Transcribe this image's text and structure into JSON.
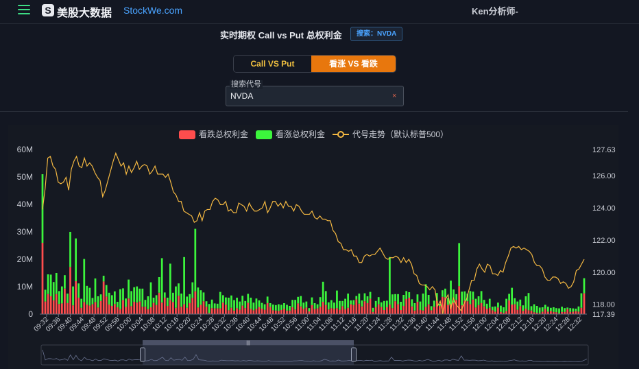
{
  "header": {
    "menu_icon": "hamburger-icon",
    "logo_icon": "s-logo-icon",
    "logo_mark": "S",
    "brand_cn": "美股大数据",
    "brand_en": "StockWe.com",
    "user": "Ken分析师-"
  },
  "title_row": {
    "title": "实时期权 Call vs Put 总权利金",
    "search_badge": "搜索：NVDA"
  },
  "toggle": {
    "option_1": "Call VS Put",
    "option_2": "看涨 VS 看跌",
    "active": "看涨 VS 看跌"
  },
  "search": {
    "label": "搜索代号",
    "value": "NVDA",
    "clear_icon": "close-icon",
    "clear_glyph": "×"
  },
  "colors": {
    "put": "#ff4d4d",
    "call": "#3cf53c",
    "price": "#f5b942",
    "accent": "#e8770d",
    "link": "#4aa3ff"
  },
  "chart_data": {
    "type": "bar",
    "stacked": true,
    "legend": {
      "placement": "top-center",
      "put_label": "看跌总权利金",
      "call_label": "看涨总权利金",
      "price_label": "代号走势（默认标普500）"
    },
    "y_left": {
      "ticks": [
        "0",
        "10M",
        "20M",
        "30M",
        "40M",
        "50M",
        "60M"
      ],
      "range": [
        0,
        60
      ]
    },
    "y_right": {
      "ticks": [
        "117.39",
        "118.00",
        "120.00",
        "122.00",
        "124.00",
        "126.00",
        "127.63"
      ],
      "range": [
        117.39,
        127.63
      ]
    },
    "x_ticks": [
      "09:32",
      "09:36",
      "09:40",
      "09:44",
      "09:48",
      "09:52",
      "09:56",
      "10:00",
      "10:04",
      "10:08",
      "10:12",
      "10:16",
      "10:20",
      "10:24",
      "10:28",
      "10:32",
      "10:36",
      "10:40",
      "10:44",
      "10:48",
      "10:52",
      "10:56",
      "11:00",
      "11:04",
      "11:08",
      "11:12",
      "11:16",
      "11:20",
      "11:24",
      "11:28",
      "11:32",
      "11:36",
      "11:40",
      "11:44",
      "11:48",
      "11:52",
      "11:56",
      "12:00",
      "12:04",
      "12:08",
      "12:12",
      "12:16",
      "12:20",
      "12:24",
      "12:28",
      "12:32"
    ],
    "put_values": [
      26,
      4.6,
      7.3,
      6.5,
      5,
      7.3,
      3.7,
      3.9,
      9.3,
      4,
      17.2,
      3.2,
      12,
      6,
      2.3,
      4.4,
      3.5,
      3.1,
      3.6,
      4.4,
      2.4,
      4.8,
      11.9,
      6.4,
      3.5,
      3,
      3.7,
      2.5,
      1.8,
      5.1,
      2.6,
      5.7,
      2.9,
      4.5,
      4.2,
      4.6,
      2.7,
      2.7,
      1.8,
      2.5,
      4.1,
      3.3,
      7.8,
      4.2,
      6,
      3,
      5.1,
      4.4,
      2.3,
      6.7,
      2.7,
      3.6,
      2.3,
      4,
      5.9,
      8.3,
      2.4,
      3.4,
      4.7,
      2.7,
      0.4,
      2.2,
      2.1,
      2.1,
      2.1,
      4.2,
      3.4,
      1.4,
      2.3,
      1.3,
      2.2,
      1.6,
      3.1,
      2.2,
      4.1,
      1.9,
      1.4,
      2,
      2.6,
      2,
      1.6,
      4,
      2.6,
      1.4,
      1.3,
      1.2,
      1.5,
      2,
      1.3,
      1.3,
      2.5,
      1.7,
      3.9,
      2.8,
      2,
      2.4,
      1,
      3.3,
      1.9,
      2.1,
      2.7,
      4.5,
      3.3,
      1.7,
      2.2,
      2,
      2.2,
      1.6,
      2.9,
      1.8,
      2.3,
      3.6,
      3.3,
      5.4,
      3.8,
      2.8,
      4.7,
      4,
      5.6,
      0.8,
      2.5,
      3.6,
      2.6,
      1.5,
      2.5,
      3.5,
      2.2,
      4.7,
      3.6,
      1.5,
      3,
      5.5,
      6,
      2.8,
      1.3,
      4.5,
      1.5,
      1.3,
      2.6,
      3.6,
      1.4,
      2.7,
      4.8,
      3,
      6.3,
      6.1,
      3.4,
      3.5,
      4.2,
      5.2,
      10.2,
      3.2,
      4.9,
      4.7,
      3.6,
      5.3,
      2.4,
      3.3,
      4,
      2.8,
      2,
      2.3,
      1.4,
      0.9,
      2.4,
      0.8,
      0.5,
      1.1,
      5,
      3.5,
      3.6,
      1.6,
      2.9,
      1.2,
      2,
      1.4,
      1.3,
      0.7,
      0.5,
      0.4,
      0.9,
      1.9,
      0.9,
      1.2,
      0.8,
      0.7,
      0.3,
      0.8,
      0.8,
      1.8,
      0.8,
      0.9,
      1.1,
      0.9,
      2.3,
      7.6
    ],
    "call_values": [
      25,
      4.3,
      7.2,
      7.9,
      6.7,
      7.7,
      4.7,
      6.2,
      4.9,
      3.5,
      12.8,
      6.9,
      15.6,
      5.2,
      3.3,
      15.7,
      6.8,
      6.5,
      2.3,
      8.6,
      4.1,
      2.4,
      2.1,
      4.2,
      4.3,
      3.9,
      4.6,
      2,
      7.3,
      4.3,
      3.1,
      6.9,
      5.5,
      5.3,
      5.9,
      4.7,
      6.6,
      2.5,
      4.7,
      9.1,
      1.9,
      3.6,
      5.7,
      16.2,
      1.9,
      3,
      13.3,
      3.4,
      7.8,
      4.5,
      4.8,
      17.2,
      4.1,
      3.3,
      5.7,
      22.8,
      7.3,
      5.3,
      3.2,
      2,
      3.3,
      3.1,
      1.8,
      1.7,
      6,
      2.7,
      2.7,
      4.6,
      4.5,
      3.8,
      3.8,
      3,
      3.6,
      2.6,
      3.3,
      4.1,
      2.8,
      3.7,
      2.4,
      2.1,
      2,
      2.4,
      1.4,
      2.1,
      2,
      2.4,
      1.9,
      2,
      2.1,
      1.7,
      2.7,
      3.5,
      2.4,
      3.8,
      2.2,
      2.2,
      1.2,
      2.8,
      2.1,
      1.5,
      3.5,
      7.3,
      5.1,
      2.6,
      2.9,
      2.2,
      6.4,
      3.2,
      1.9,
      3.8,
      5.2,
      1.4,
      1.8,
      1.2,
      3.7,
      2.2,
      2.9,
      2.5,
      2.5,
      1.5,
      2.3,
      2.6,
      1.7,
      3.3,
      2.4,
      17.3,
      5,
      2.6,
      3.7,
      3,
      4,
      2.9,
      2,
      2.6,
      2.7,
      2.7,
      3.1,
      6.2,
      8.3,
      3.4,
      1.5,
      2.2,
      2.9,
      0.8,
      2.4,
      3.2,
      2.5,
      8.7,
      4.8,
      2.1,
      15.7,
      5,
      3.4,
      2.8,
      4.8,
      2.9,
      3.2,
      3.2,
      4.4,
      2.4,
      1.8,
      3.3,
      1.3,
      1.9,
      1.8,
      2.3,
      2,
      4.5,
      2.4,
      6.1,
      2.2,
      3,
      2.4,
      2,
      4.5,
      6.3,
      1.6,
      2.9,
      2.5,
      2,
      1.6,
      1.5,
      1.8,
      1.1,
      1.7,
      1.5,
      1.8,
      1.9,
      1.4,
      0.6,
      1.4,
      1.2,
      0.9,
      1.9,
      5.3,
      5.5
    ],
    "price_values": [
      123.9,
      125.2,
      127.1,
      127.2,
      126.6,
      126.4,
      125.6,
      125.5,
      125.6,
      125.9,
      125.1,
      126.4,
      126.9,
      127.2,
      126.6,
      126.5,
      127.1,
      126.6,
      126.8,
      126.6,
      126.2,
      125.9,
      125.7,
      124.7,
      125.1,
      125.7,
      126.3,
      126.9,
      127.4,
      127.0,
      126.6,
      126.8,
      126.1,
      126.6,
      126.2,
      126.5,
      126.9,
      126.4,
      126.6,
      126.7,
      126.6,
      126.1,
      126.3,
      126.6,
      126.1,
      126.1,
      126.1,
      125.9,
      126.1,
      125.6,
      125.0,
      124.8,
      124.4,
      124.4,
      123.8,
      123.7,
      123.6,
      123.5,
      123.1,
      123.2,
      123.7,
      123.2,
      123.8,
      123.9,
      123.9,
      124.4,
      124.6,
      124.5,
      124.2,
      124.2,
      124.4,
      123.8,
      123.9,
      123.7,
      123.7,
      124.3,
      124.2,
      124.1,
      123.8,
      124.3,
      124.0,
      123.8,
      123.8,
      123.9,
      124.0,
      124.4,
      123.7,
      124.0,
      124.4,
      124.4,
      124.1,
      124.3,
      124.0,
      124.4,
      124.1,
      124.1,
      123.8,
      124.2,
      124.1,
      123.8,
      123.6,
      123.6,
      123.6,
      123.8,
      123.4,
      123.3,
      123.5,
      123.3,
      123.3,
      123.2,
      123.2,
      122.6,
      122.4,
      121.9,
      121.8,
      121.4,
      121.4,
      121.3,
      121.4,
      121.0,
      121.0,
      120.6,
      120.6,
      121.0,
      121.1,
      121.0,
      121.1,
      121.1,
      121.3,
      121.5,
      121.2,
      120.9,
      120.8,
      120.9,
      120.9,
      121.0,
      120.9,
      120.6,
      120.9,
      120.6,
      120.8,
      120.5,
      119.9,
      119.8,
      119.3,
      119.2,
      119.2,
      119.1,
      118.9,
      119.1,
      118.9,
      117.9,
      118.2,
      117.4,
      118.3,
      118.6,
      117.7,
      118.4,
      118.0,
      117.8,
      117.6,
      118.0,
      118.3,
      118.9,
      119.5,
      119.5,
      120.2,
      120.5,
      120.2,
      120.0,
      120.5,
      120.4,
      119.9,
      119.9,
      119.8,
      120.1,
      120.0,
      120.6,
      121.0,
      121.5,
      121.6,
      121.5,
      121.6,
      121.4,
      121.5,
      121.4,
      121.3,
      121.1,
      120.6,
      120.4,
      120.4,
      120.2,
      119.7,
      119.5,
      119.5,
      119.7,
      119.7,
      119.6,
      119.3,
      119.4,
      119.3,
      119.0,
      119.1,
      119.4,
      120.1,
      120.2,
      120.5,
      120.8
    ]
  }
}
